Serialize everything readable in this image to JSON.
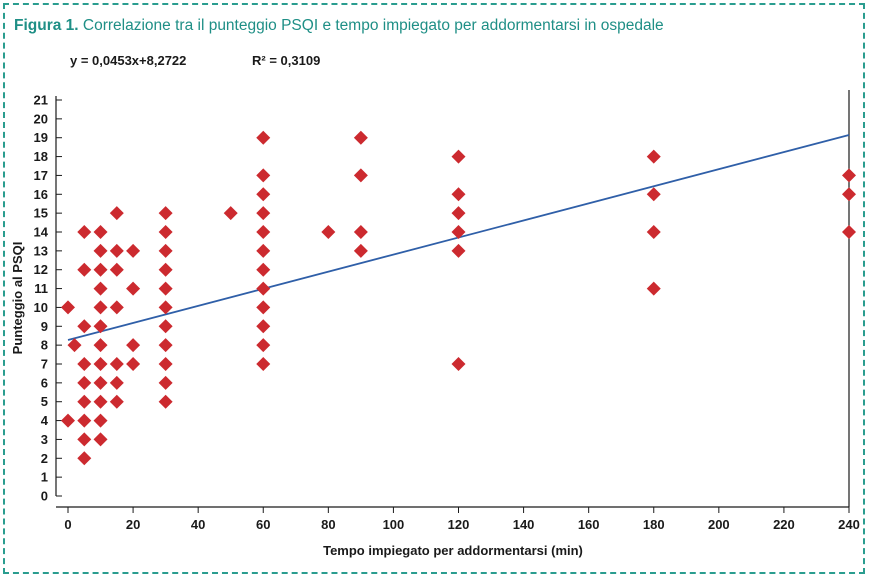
{
  "figure": {
    "label": "Figura 1.",
    "caption": "Correlazione tra il punteggio PSQI e tempo impiegato per addormentarsi in ospedale"
  },
  "colors": {
    "caption": "#1f8f86",
    "border": "#2a9d8f",
    "marker": "#cc2a2f",
    "trendline": "#2f5fa8",
    "axis": "#1a1a1a"
  },
  "chart_data": {
    "type": "scatter",
    "title": "",
    "xlabel": "Tempo impiegato per addormentarsi (min)",
    "ylabel": "Punteggio al PSQI",
    "xlim": [
      0,
      240
    ],
    "ylim": [
      0,
      21
    ],
    "x_ticks": [
      0,
      20,
      40,
      60,
      80,
      100,
      120,
      140,
      160,
      180,
      200,
      220,
      240
    ],
    "y_ticks": [
      0,
      1,
      2,
      3,
      4,
      5,
      6,
      7,
      8,
      9,
      10,
      11,
      12,
      13,
      14,
      15,
      16,
      17,
      18,
      19,
      20,
      21
    ],
    "grid": false,
    "marker": "diamond",
    "regression": {
      "equation": "y = 0,0453x+8,2722",
      "r_squared": "R² = 0,3109",
      "slope": 0.0453,
      "intercept": 8.2722
    },
    "points": [
      [
        0,
        10
      ],
      [
        0,
        4
      ],
      [
        2,
        8
      ],
      [
        5,
        14
      ],
      [
        5,
        12
      ],
      [
        5,
        9
      ],
      [
        5,
        7
      ],
      [
        5,
        6
      ],
      [
        5,
        5
      ],
      [
        5,
        4
      ],
      [
        5,
        3
      ],
      [
        5,
        2
      ],
      [
        10,
        14
      ],
      [
        10,
        13
      ],
      [
        10,
        12
      ],
      [
        10,
        11
      ],
      [
        10,
        10
      ],
      [
        10,
        9
      ],
      [
        10,
        8
      ],
      [
        10,
        7
      ],
      [
        10,
        6
      ],
      [
        10,
        5
      ],
      [
        10,
        4
      ],
      [
        10,
        3
      ],
      [
        15,
        15
      ],
      [
        15,
        13
      ],
      [
        15,
        12
      ],
      [
        15,
        10
      ],
      [
        15,
        7
      ],
      [
        15,
        6
      ],
      [
        15,
        5
      ],
      [
        20,
        13
      ],
      [
        20,
        11
      ],
      [
        20,
        8
      ],
      [
        20,
        7
      ],
      [
        30,
        15
      ],
      [
        30,
        14
      ],
      [
        30,
        13
      ],
      [
        30,
        12
      ],
      [
        30,
        11
      ],
      [
        30,
        10
      ],
      [
        30,
        9
      ],
      [
        30,
        8
      ],
      [
        30,
        7
      ],
      [
        30,
        6
      ],
      [
        30,
        5
      ],
      [
        50,
        15
      ],
      [
        60,
        19
      ],
      [
        60,
        17
      ],
      [
        60,
        16
      ],
      [
        60,
        15
      ],
      [
        60,
        14
      ],
      [
        60,
        13
      ],
      [
        60,
        12
      ],
      [
        60,
        11
      ],
      [
        60,
        10
      ],
      [
        60,
        9
      ],
      [
        60,
        8
      ],
      [
        60,
        7
      ],
      [
        80,
        14
      ],
      [
        90,
        19
      ],
      [
        90,
        17
      ],
      [
        90,
        14
      ],
      [
        90,
        13
      ],
      [
        120,
        18
      ],
      [
        120,
        16
      ],
      [
        120,
        15
      ],
      [
        120,
        14
      ],
      [
        120,
        13
      ],
      [
        120,
        7
      ],
      [
        180,
        18
      ],
      [
        180,
        16
      ],
      [
        180,
        14
      ],
      [
        180,
        11
      ],
      [
        240,
        17
      ],
      [
        240,
        16
      ],
      [
        240,
        14
      ]
    ]
  }
}
